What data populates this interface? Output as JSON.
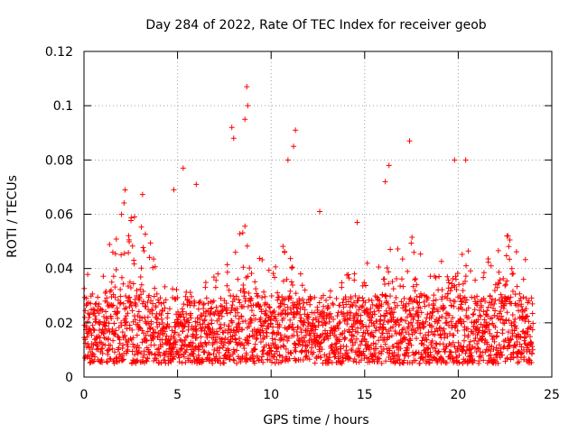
{
  "chart_data": {
    "type": "scatter",
    "title": "Day 284 of 2022, Rate Of TEC Index for receiver geob",
    "xlabel": "GPS time / hours",
    "ylabel": "ROTI / TECUs",
    "xlim": [
      0,
      25
    ],
    "ylim": [
      0,
      0.12
    ],
    "xticks": [
      0,
      5,
      10,
      15,
      20,
      25
    ],
    "xtick_labels": [
      "0",
      "5",
      "10",
      "15",
      "20",
      "25"
    ],
    "yticks": [
      0,
      0.02,
      0.04,
      0.06,
      0.08,
      0.1,
      0.12
    ],
    "ytick_labels": [
      "0",
      "0.02",
      "0.04",
      "0.06",
      "0.08",
      "0.1",
      "0.12"
    ],
    "grid": true,
    "legend": "none",
    "marker": "+",
    "color": "#ff0000",
    "x_range_of_data": [
      0,
      24
    ],
    "typical_band": [
      0.005,
      0.03
    ],
    "notable_points": [
      {
        "x": 8.7,
        "y": 0.107
      },
      {
        "x": 8.75,
        "y": 0.1
      },
      {
        "x": 8.6,
        "y": 0.095
      },
      {
        "x": 7.9,
        "y": 0.092
      },
      {
        "x": 8.0,
        "y": 0.088
      },
      {
        "x": 11.3,
        "y": 0.091
      },
      {
        "x": 11.2,
        "y": 0.085
      },
      {
        "x": 10.9,
        "y": 0.08
      },
      {
        "x": 17.4,
        "y": 0.087
      },
      {
        "x": 19.8,
        "y": 0.08
      },
      {
        "x": 20.4,
        "y": 0.08
      },
      {
        "x": 16.3,
        "y": 0.078
      },
      {
        "x": 5.3,
        "y": 0.077
      },
      {
        "x": 6.0,
        "y": 0.071
      },
      {
        "x": 4.8,
        "y": 0.069
      },
      {
        "x": 16.1,
        "y": 0.072
      },
      {
        "x": 12.6,
        "y": 0.061
      },
      {
        "x": 2.7,
        "y": 0.059
      },
      {
        "x": 14.6,
        "y": 0.057
      },
      {
        "x": 22.6,
        "y": 0.052
      }
    ]
  }
}
